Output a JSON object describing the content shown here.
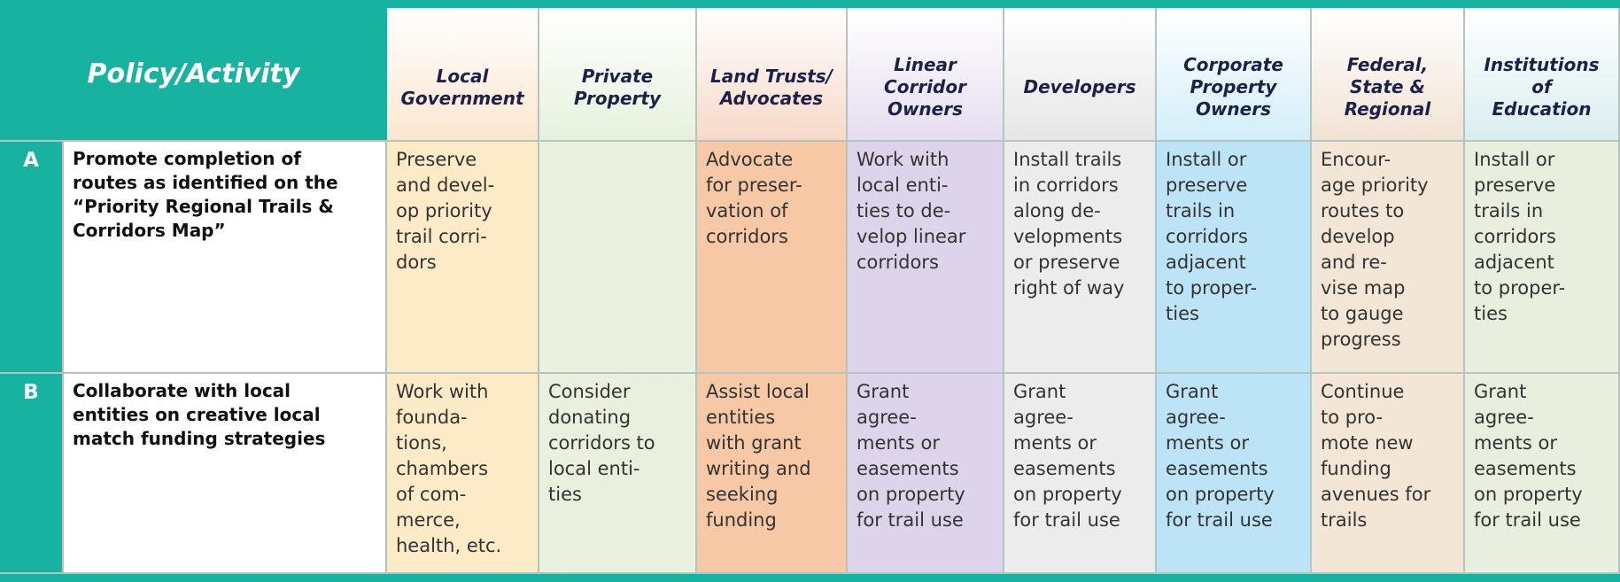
{
  "header": {
    "title": "Policy/Activity",
    "columns": [
      "Local\nGovernment",
      "Private\nProperty",
      "Land Trusts/\nAdvocates",
      "Linear\nCorridor\nOwners",
      "Developers",
      "Corporate\nProperty\nOwners",
      "Federal,\nState &\nRegional",
      "Institutions\nof\nEducation"
    ]
  },
  "rows": [
    {
      "id": "A",
      "policy": "Promote completion of\nroutes as identified on the\n“Priority Regional Trails &\nCorridors Map”",
      "cells": [
        "Preserve\nand devel-\nop priority\ntrail corri-\ndors",
        null,
        "Advocate\nfor preser-\nvation of\ncorridors",
        "Work with\nlocal enti-\nties to de-\nvelop linear\ncorridors",
        "Install trails\nin corridors\nalong de-\nvelopments\nor preserve\nright of way",
        "Install or\npreserve\ntrails in\ncorridors\nadjacent\nto proper-\nties",
        "Encour-\nage priority\nroutes to\ndevelop\nand re-\nvise map\nto gauge\nprogress",
        "Install or\npreserve\ntrails in\ncorridors\nadjacent\nto proper-\nties"
      ]
    },
    {
      "id": "B",
      "policy": "Collaborate with local\nentities on creative local\nmatch funding strategies",
      "cells": [
        "Work with\nfounda-\ntions,\nchambers\nof com-\nmerce,\nhealth, etc.",
        "Consider\ndonating\ncorridors to\nlocal enti-\nties",
        "Assist local\nentities\nwith grant\nwriting and\nseeking\nfunding",
        "Grant\nagree-\nments or\neasements\non property\nfor trail use",
        "Grant\nagree-\nments or\neasements\non property\nfor trail use",
        "Grant\nagree-\nments or\neasements\non property\nfor trail use",
        "Continue\nto pro-\nmote new\nfunding\navenues for\ntrails",
        "Grant\nagree-\nments or\neasements\non property\nfor trail use"
      ]
    }
  ]
}
